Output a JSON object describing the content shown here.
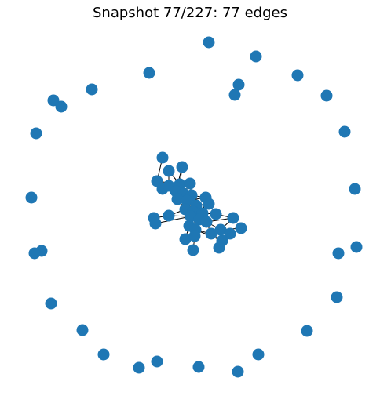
{
  "title": "Snapshot 77/227: 77 edges",
  "colors": {
    "node": "#1f77b4",
    "edge": "#000000",
    "background": "#ffffff",
    "text": "#000000"
  }
}
